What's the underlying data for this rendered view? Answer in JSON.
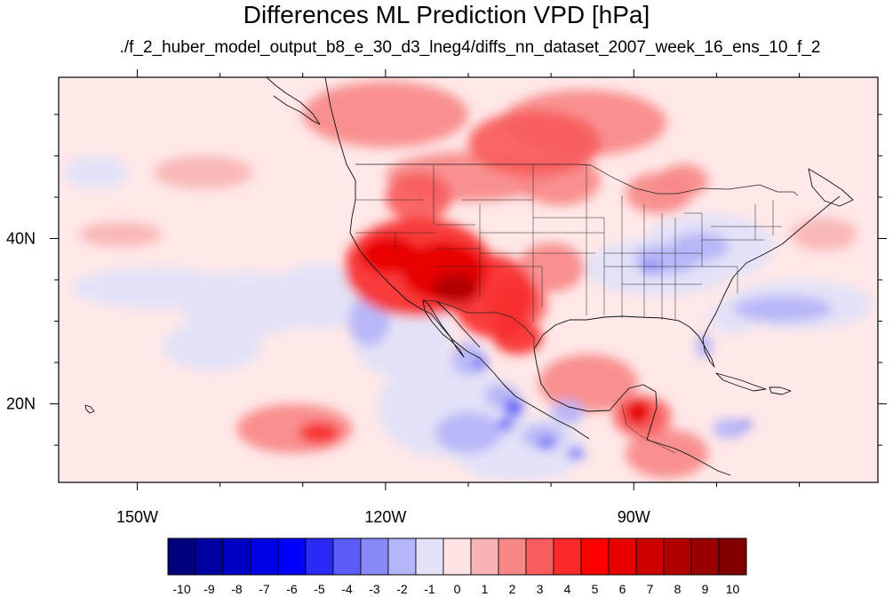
{
  "title": "Differences ML Prediction VPD [hPa]",
  "subtitle": "./f_2_huber_model_output_b8_e_30_d3_lneg4/diffs_nn_dataset_2007_week_16_ens_10_f_2",
  "map": {
    "projection": "cylindrical equidistant",
    "lon_range": [
      -159.5,
      -60.5
    ],
    "lat_range": [
      10.5,
      59.5
    ],
    "x_ticks": [
      {
        "lon": -150,
        "label": "150W"
      },
      {
        "lon": -120,
        "label": "120W"
      },
      {
        "lon": -90,
        "label": "90W"
      }
    ],
    "y_ticks": [
      {
        "lat": 40,
        "label": "40N"
      },
      {
        "lat": 20,
        "label": "20N"
      }
    ],
    "minor_lon_step": 10,
    "minor_lat_step": 5,
    "ocean_background": "#ffe8e8"
  },
  "chart_data": {
    "type": "heatmap",
    "variable": "VPD difference",
    "units": "hPa",
    "blobs": [
      {
        "lon": -116.0,
        "lat": 36.5,
        "rx": 9,
        "ry": 6,
        "value": 4
      },
      {
        "lon": -113.0,
        "lat": 36.0,
        "rx": 5,
        "ry": 3.5,
        "value": 6
      },
      {
        "lon": -111.5,
        "lat": 34.0,
        "rx": 2.8,
        "ry": 1.8,
        "value": 8
      },
      {
        "lon": -119.5,
        "lat": 38.0,
        "rx": 3.5,
        "ry": 2.2,
        "value": 6
      },
      {
        "lon": -107.0,
        "lat": 33.0,
        "rx": 5,
        "ry": 5,
        "value": 4
      },
      {
        "lon": -104.0,
        "lat": 32.0,
        "rx": 3.5,
        "ry": 3,
        "value": 3
      },
      {
        "lon": -104.0,
        "lat": 28.0,
        "rx": 3,
        "ry": 2,
        "value": 4
      },
      {
        "lon": -100.0,
        "lat": 36.5,
        "rx": 4,
        "ry": 3,
        "value": 2
      },
      {
        "lon": -110.0,
        "lat": 47.5,
        "rx": 10,
        "ry": 3,
        "value": 2
      },
      {
        "lon": -116.0,
        "lat": 45.0,
        "rx": 4,
        "ry": 3,
        "value": 3
      },
      {
        "lon": -102.0,
        "lat": 51.5,
        "rx": 8,
        "ry": 4,
        "value": 3
      },
      {
        "lon": -99.0,
        "lat": 47.0,
        "rx": 5,
        "ry": 3,
        "value": 2
      },
      {
        "lon": -120.0,
        "lat": 55.0,
        "rx": 10,
        "ry": 4,
        "value": 2
      },
      {
        "lon": -96.0,
        "lat": 54.0,
        "rx": 10,
        "ry": 4,
        "value": 2
      },
      {
        "lon": -87.0,
        "lat": 45.5,
        "rx": 4,
        "ry": 2.5,
        "value": 2
      },
      {
        "lon": -84.0,
        "lat": 47.0,
        "rx": 3,
        "ry": 2,
        "value": 2
      },
      {
        "lon": -95.5,
        "lat": 22.5,
        "rx": 6,
        "ry": 3.5,
        "value": 2
      },
      {
        "lon": -89.0,
        "lat": 18.5,
        "rx": 3.5,
        "ry": 2.5,
        "value": 3
      },
      {
        "lon": -89.5,
        "lat": 19.0,
        "rx": 1.6,
        "ry": 1.5,
        "value": 6
      },
      {
        "lon": -86.0,
        "lat": 14.0,
        "rx": 5,
        "ry": 3,
        "value": 2
      },
      {
        "lon": -131.0,
        "lat": 17.0,
        "rx": 7,
        "ry": 3,
        "value": 2
      },
      {
        "lon": -128.0,
        "lat": 16.5,
        "rx": 2.5,
        "ry": 1.3,
        "value": 4
      },
      {
        "lon": -142.0,
        "lat": 48.0,
        "rx": 6,
        "ry": 2,
        "value": 1
      },
      {
        "lon": -152.0,
        "lat": 40.5,
        "rx": 5,
        "ry": 1.5,
        "value": 1
      },
      {
        "lon": -67.0,
        "lat": 40.5,
        "rx": 4,
        "ry": 2,
        "value": 1
      },
      {
        "lon": -128.0,
        "lat": 33.0,
        "rx": 6,
        "ry": 4,
        "value": -1
      },
      {
        "lon": -137.0,
        "lat": 32.0,
        "rx": 8,
        "ry": 4,
        "value": -1
      },
      {
        "lon": -148.0,
        "lat": 34.0,
        "rx": 10,
        "ry": 2.5,
        "value": -1
      },
      {
        "lon": -118.0,
        "lat": 28.0,
        "rx": 6,
        "ry": 5,
        "value": -1
      },
      {
        "lon": -113.0,
        "lat": 19.5,
        "rx": 8,
        "ry": 6,
        "value": -1
      },
      {
        "lon": -104.0,
        "lat": 14.5,
        "rx": 8,
        "ry": 4,
        "value": -1
      },
      {
        "lon": -122.0,
        "lat": 30.0,
        "rx": 2.5,
        "ry": 3,
        "value": -2
      },
      {
        "lon": -110.0,
        "lat": 16.5,
        "rx": 4,
        "ry": 2.5,
        "value": -2
      },
      {
        "lon": -106.0,
        "lat": 21.0,
        "rx": 2,
        "ry": 1.5,
        "value": -2
      },
      {
        "lon": -104.5,
        "lat": 19.5,
        "rx": 1.2,
        "ry": 1.2,
        "value": -4
      },
      {
        "lon": -105.5,
        "lat": 17.5,
        "rx": 1,
        "ry": 0.8,
        "value": -4
      },
      {
        "lon": -101.0,
        "lat": 16.0,
        "rx": 2.5,
        "ry": 1.5,
        "value": -2
      },
      {
        "lon": -100.5,
        "lat": 15.2,
        "rx": 1,
        "ry": 0.7,
        "value": -4
      },
      {
        "lon": -97.0,
        "lat": 14.0,
        "rx": 1,
        "ry": 0.7,
        "value": -4
      },
      {
        "lon": -98.0,
        "lat": 19.0,
        "rx": 2,
        "ry": 1.5,
        "value": -2
      },
      {
        "lon": -110.0,
        "lat": 25.5,
        "rx": 2,
        "ry": 2,
        "value": -2
      },
      {
        "lon": -108.5,
        "lat": 24.8,
        "rx": 0.8,
        "ry": 0.8,
        "value": -4
      },
      {
        "lon": -87.0,
        "lat": 36.5,
        "rx": 9,
        "ry": 3.5,
        "value": -1
      },
      {
        "lon": -81.0,
        "lat": 39.0,
        "rx": 8,
        "ry": 4,
        "value": -1
      },
      {
        "lon": -86.0,
        "lat": 37.5,
        "rx": 4,
        "ry": 1.8,
        "value": -2
      },
      {
        "lon": -82.0,
        "lat": 39.0,
        "rx": 3.5,
        "ry": 1.8,
        "value": -2
      },
      {
        "lon": -88.0,
        "lat": 36.5,
        "rx": 1.2,
        "ry": 0.8,
        "value": -3
      },
      {
        "lon": -70.0,
        "lat": 32.0,
        "rx": 9,
        "ry": 3,
        "value": -1
      },
      {
        "lon": -72.0,
        "lat": 31.5,
        "rx": 6,
        "ry": 1.6,
        "value": -2
      },
      {
        "lon": -81.5,
        "lat": 27.0,
        "rx": 1,
        "ry": 1.5,
        "value": -2
      },
      {
        "lon": -78.0,
        "lat": 30.5,
        "rx": 3,
        "ry": 2,
        "value": -1
      },
      {
        "lon": -141.0,
        "lat": 27.0,
        "rx": 6,
        "ry": 3,
        "value": -1
      },
      {
        "lon": -112.0,
        "lat": 22.0,
        "rx": 5,
        "ry": 3,
        "value": -1
      },
      {
        "lon": -78.5,
        "lat": 17.0,
        "rx": 2,
        "ry": 1.2,
        "value": -2
      },
      {
        "lon": -76.5,
        "lat": 17.5,
        "rx": 0.8,
        "ry": 0.6,
        "value": -3
      },
      {
        "lon": -155.0,
        "lat": 48.0,
        "rx": 4,
        "ry": 2,
        "value": -1
      }
    ]
  },
  "colorbar": {
    "levels": [
      -10,
      -9,
      -8,
      -7,
      -6,
      -5,
      -4,
      -3,
      -2,
      -1,
      0,
      1,
      2,
      3,
      4,
      5,
      6,
      7,
      8,
      9,
      10
    ],
    "labels": [
      "-10",
      "-9",
      "-8",
      "-7",
      "-6",
      "-5",
      "-4",
      "-3",
      "-2",
      "-1",
      "0",
      "1",
      "2",
      "3",
      "4",
      "5",
      "6",
      "7",
      "8",
      "9",
      "10"
    ],
    "colors": [
      "#00007d",
      "#0000a2",
      "#0000c4",
      "#0000e4",
      "#0000ff",
      "#2a2af8",
      "#5c5cf8",
      "#8888f8",
      "#b4b4f8",
      "#e2e2f8",
      "#fde3e3",
      "#f8b4b4",
      "#f88888",
      "#f85c5c",
      "#f82a2a",
      "#ff0000",
      "#e60000",
      "#cc0000",
      "#b00000",
      "#990000",
      "#800000"
    ]
  }
}
